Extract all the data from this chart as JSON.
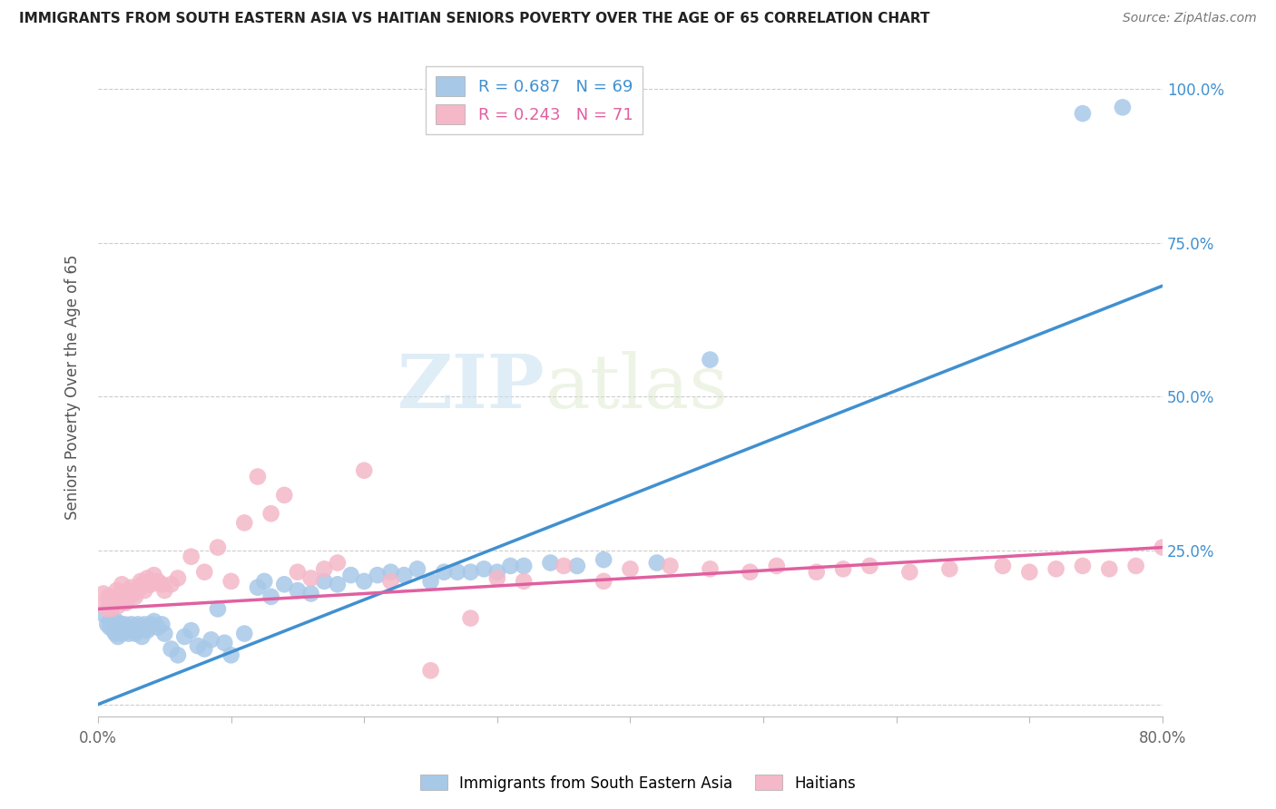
{
  "title": "IMMIGRANTS FROM SOUTH EASTERN ASIA VS HAITIAN SENIORS POVERTY OVER THE AGE OF 65 CORRELATION CHART",
  "source": "Source: ZipAtlas.com",
  "ylabel": "Seniors Poverty Over the Age of 65",
  "xlim": [
    0.0,
    0.8
  ],
  "ylim": [
    -0.02,
    1.05
  ],
  "yticks": [
    0.0,
    0.25,
    0.5,
    0.75,
    1.0
  ],
  "xticks": [
    0.0,
    0.1,
    0.2,
    0.3,
    0.4,
    0.5,
    0.6,
    0.7,
    0.8
  ],
  "ytick_labels_right": [
    "",
    "25.0%",
    "50.0%",
    "75.0%",
    "100.0%"
  ],
  "blue_color": "#a8c8e8",
  "pink_color": "#f4b8c8",
  "blue_line_color": "#4090d0",
  "pink_line_color": "#e060a0",
  "legend_blue_label": "R = 0.687   N = 69",
  "legend_pink_label": "R = 0.243   N = 71",
  "legend_label1": "Immigrants from South Eastern Asia",
  "legend_label2": "Haitians",
  "watermark_zip": "ZIP",
  "watermark_atlas": "atlas",
  "blue_scatter_x": [
    0.005,
    0.007,
    0.009,
    0.01,
    0.012,
    0.013,
    0.014,
    0.015,
    0.016,
    0.017,
    0.018,
    0.019,
    0.02,
    0.022,
    0.023,
    0.025,
    0.027,
    0.028,
    0.03,
    0.032,
    0.033,
    0.035,
    0.037,
    0.038,
    0.04,
    0.042,
    0.045,
    0.048,
    0.05,
    0.055,
    0.06,
    0.065,
    0.07,
    0.075,
    0.08,
    0.085,
    0.09,
    0.095,
    0.1,
    0.11,
    0.12,
    0.125,
    0.13,
    0.14,
    0.15,
    0.16,
    0.17,
    0.18,
    0.19,
    0.2,
    0.21,
    0.22,
    0.23,
    0.24,
    0.25,
    0.26,
    0.27,
    0.28,
    0.29,
    0.3,
    0.31,
    0.32,
    0.34,
    0.36,
    0.38,
    0.42,
    0.46,
    0.74,
    0.77
  ],
  "blue_scatter_y": [
    0.145,
    0.13,
    0.125,
    0.14,
    0.12,
    0.115,
    0.135,
    0.11,
    0.125,
    0.13,
    0.115,
    0.12,
    0.13,
    0.125,
    0.115,
    0.13,
    0.12,
    0.115,
    0.13,
    0.125,
    0.11,
    0.13,
    0.12,
    0.125,
    0.13,
    0.135,
    0.125,
    0.13,
    0.115,
    0.09,
    0.08,
    0.11,
    0.12,
    0.095,
    0.09,
    0.105,
    0.155,
    0.1,
    0.08,
    0.115,
    0.19,
    0.2,
    0.175,
    0.195,
    0.185,
    0.18,
    0.2,
    0.195,
    0.21,
    0.2,
    0.21,
    0.215,
    0.21,
    0.22,
    0.2,
    0.215,
    0.215,
    0.215,
    0.22,
    0.215,
    0.225,
    0.225,
    0.23,
    0.225,
    0.235,
    0.23,
    0.56,
    0.96,
    0.97
  ],
  "pink_scatter_x": [
    0.004,
    0.005,
    0.007,
    0.008,
    0.009,
    0.01,
    0.011,
    0.012,
    0.014,
    0.015,
    0.016,
    0.017,
    0.018,
    0.019,
    0.02,
    0.021,
    0.022,
    0.023,
    0.025,
    0.027,
    0.028,
    0.03,
    0.032,
    0.033,
    0.035,
    0.037,
    0.038,
    0.04,
    0.042,
    0.045,
    0.048,
    0.05,
    0.055,
    0.06,
    0.07,
    0.08,
    0.09,
    0.1,
    0.11,
    0.12,
    0.13,
    0.14,
    0.15,
    0.16,
    0.17,
    0.18,
    0.2,
    0.22,
    0.25,
    0.28,
    0.3,
    0.32,
    0.35,
    0.38,
    0.4,
    0.43,
    0.46,
    0.49,
    0.51,
    0.54,
    0.56,
    0.58,
    0.61,
    0.64,
    0.68,
    0.7,
    0.72,
    0.74,
    0.76,
    0.78,
    0.8
  ],
  "pink_scatter_y": [
    0.18,
    0.16,
    0.155,
    0.175,
    0.165,
    0.155,
    0.175,
    0.165,
    0.185,
    0.16,
    0.175,
    0.17,
    0.195,
    0.175,
    0.18,
    0.165,
    0.175,
    0.185,
    0.19,
    0.18,
    0.175,
    0.185,
    0.2,
    0.195,
    0.185,
    0.205,
    0.195,
    0.195,
    0.21,
    0.2,
    0.195,
    0.185,
    0.195,
    0.205,
    0.24,
    0.215,
    0.255,
    0.2,
    0.295,
    0.37,
    0.31,
    0.34,
    0.215,
    0.205,
    0.22,
    0.23,
    0.38,
    0.2,
    0.055,
    0.14,
    0.205,
    0.2,
    0.225,
    0.2,
    0.22,
    0.225,
    0.22,
    0.215,
    0.225,
    0.215,
    0.22,
    0.225,
    0.215,
    0.22,
    0.225,
    0.215,
    0.22,
    0.225,
    0.22,
    0.225,
    0.255
  ],
  "blue_trend_x0": 0.0,
  "blue_trend_x1": 0.8,
  "blue_trend_y0": 0.0,
  "blue_trend_y1": 0.68,
  "pink_trend_x0": 0.0,
  "pink_trend_x1": 0.8,
  "pink_trend_y0": 0.155,
  "pink_trend_y1": 0.255,
  "background_color": "#ffffff",
  "grid_color": "#cccccc"
}
